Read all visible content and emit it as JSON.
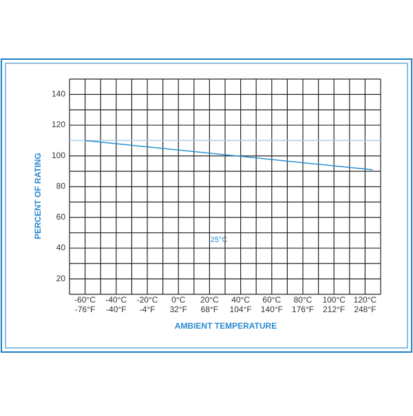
{
  "chart_data": {
    "type": "line",
    "ylabel": "PERCENT OF RATING",
    "xlabel": "AMBIENT TEMPERATURE",
    "annotation": "25°C",
    "xlim": [
      -70,
      130
    ],
    "ylim": [
      10,
      150
    ],
    "xticks": [
      {
        "value": -60,
        "label": "-60°C"
      },
      {
        "value": -40,
        "label": "-40°C"
      },
      {
        "value": -20,
        "label": "-20°C"
      },
      {
        "value": 0,
        "label": "0°C"
      },
      {
        "value": 20,
        "label": "20°C"
      },
      {
        "value": 40,
        "label": "40°C"
      },
      {
        "value": 60,
        "label": "60°C"
      },
      {
        "value": 80,
        "label": "80°C"
      },
      {
        "value": 100,
        "label": "100°C"
      },
      {
        "value": 120,
        "label": "120°C"
      }
    ],
    "xticks_fahrenheit": [
      "-76°F",
      "-40°F",
      "-4°F",
      "32°F",
      "68°F",
      "104°F",
      "140°F",
      "176°F",
      "212°F",
      "248°F"
    ],
    "yticks": [
      20,
      40,
      60,
      80,
      100,
      120,
      140
    ],
    "xgrid": [
      -70,
      -60,
      -50,
      -40,
      -30,
      -20,
      -10,
      0,
      10,
      20,
      30,
      40,
      50,
      60,
      70,
      80,
      90,
      100,
      110,
      120,
      130
    ],
    "ygrid": [
      10,
      20,
      30,
      40,
      50,
      60,
      70,
      80,
      90,
      100,
      110,
      120,
      130,
      140,
      150
    ],
    "reference_line": {
      "value": 110,
      "color": "#a8d3ec"
    },
    "series": [
      {
        "color": "#2b8fd0",
        "x": [
          -60,
          125
        ],
        "values": [
          110,
          91
        ]
      }
    ]
  }
}
